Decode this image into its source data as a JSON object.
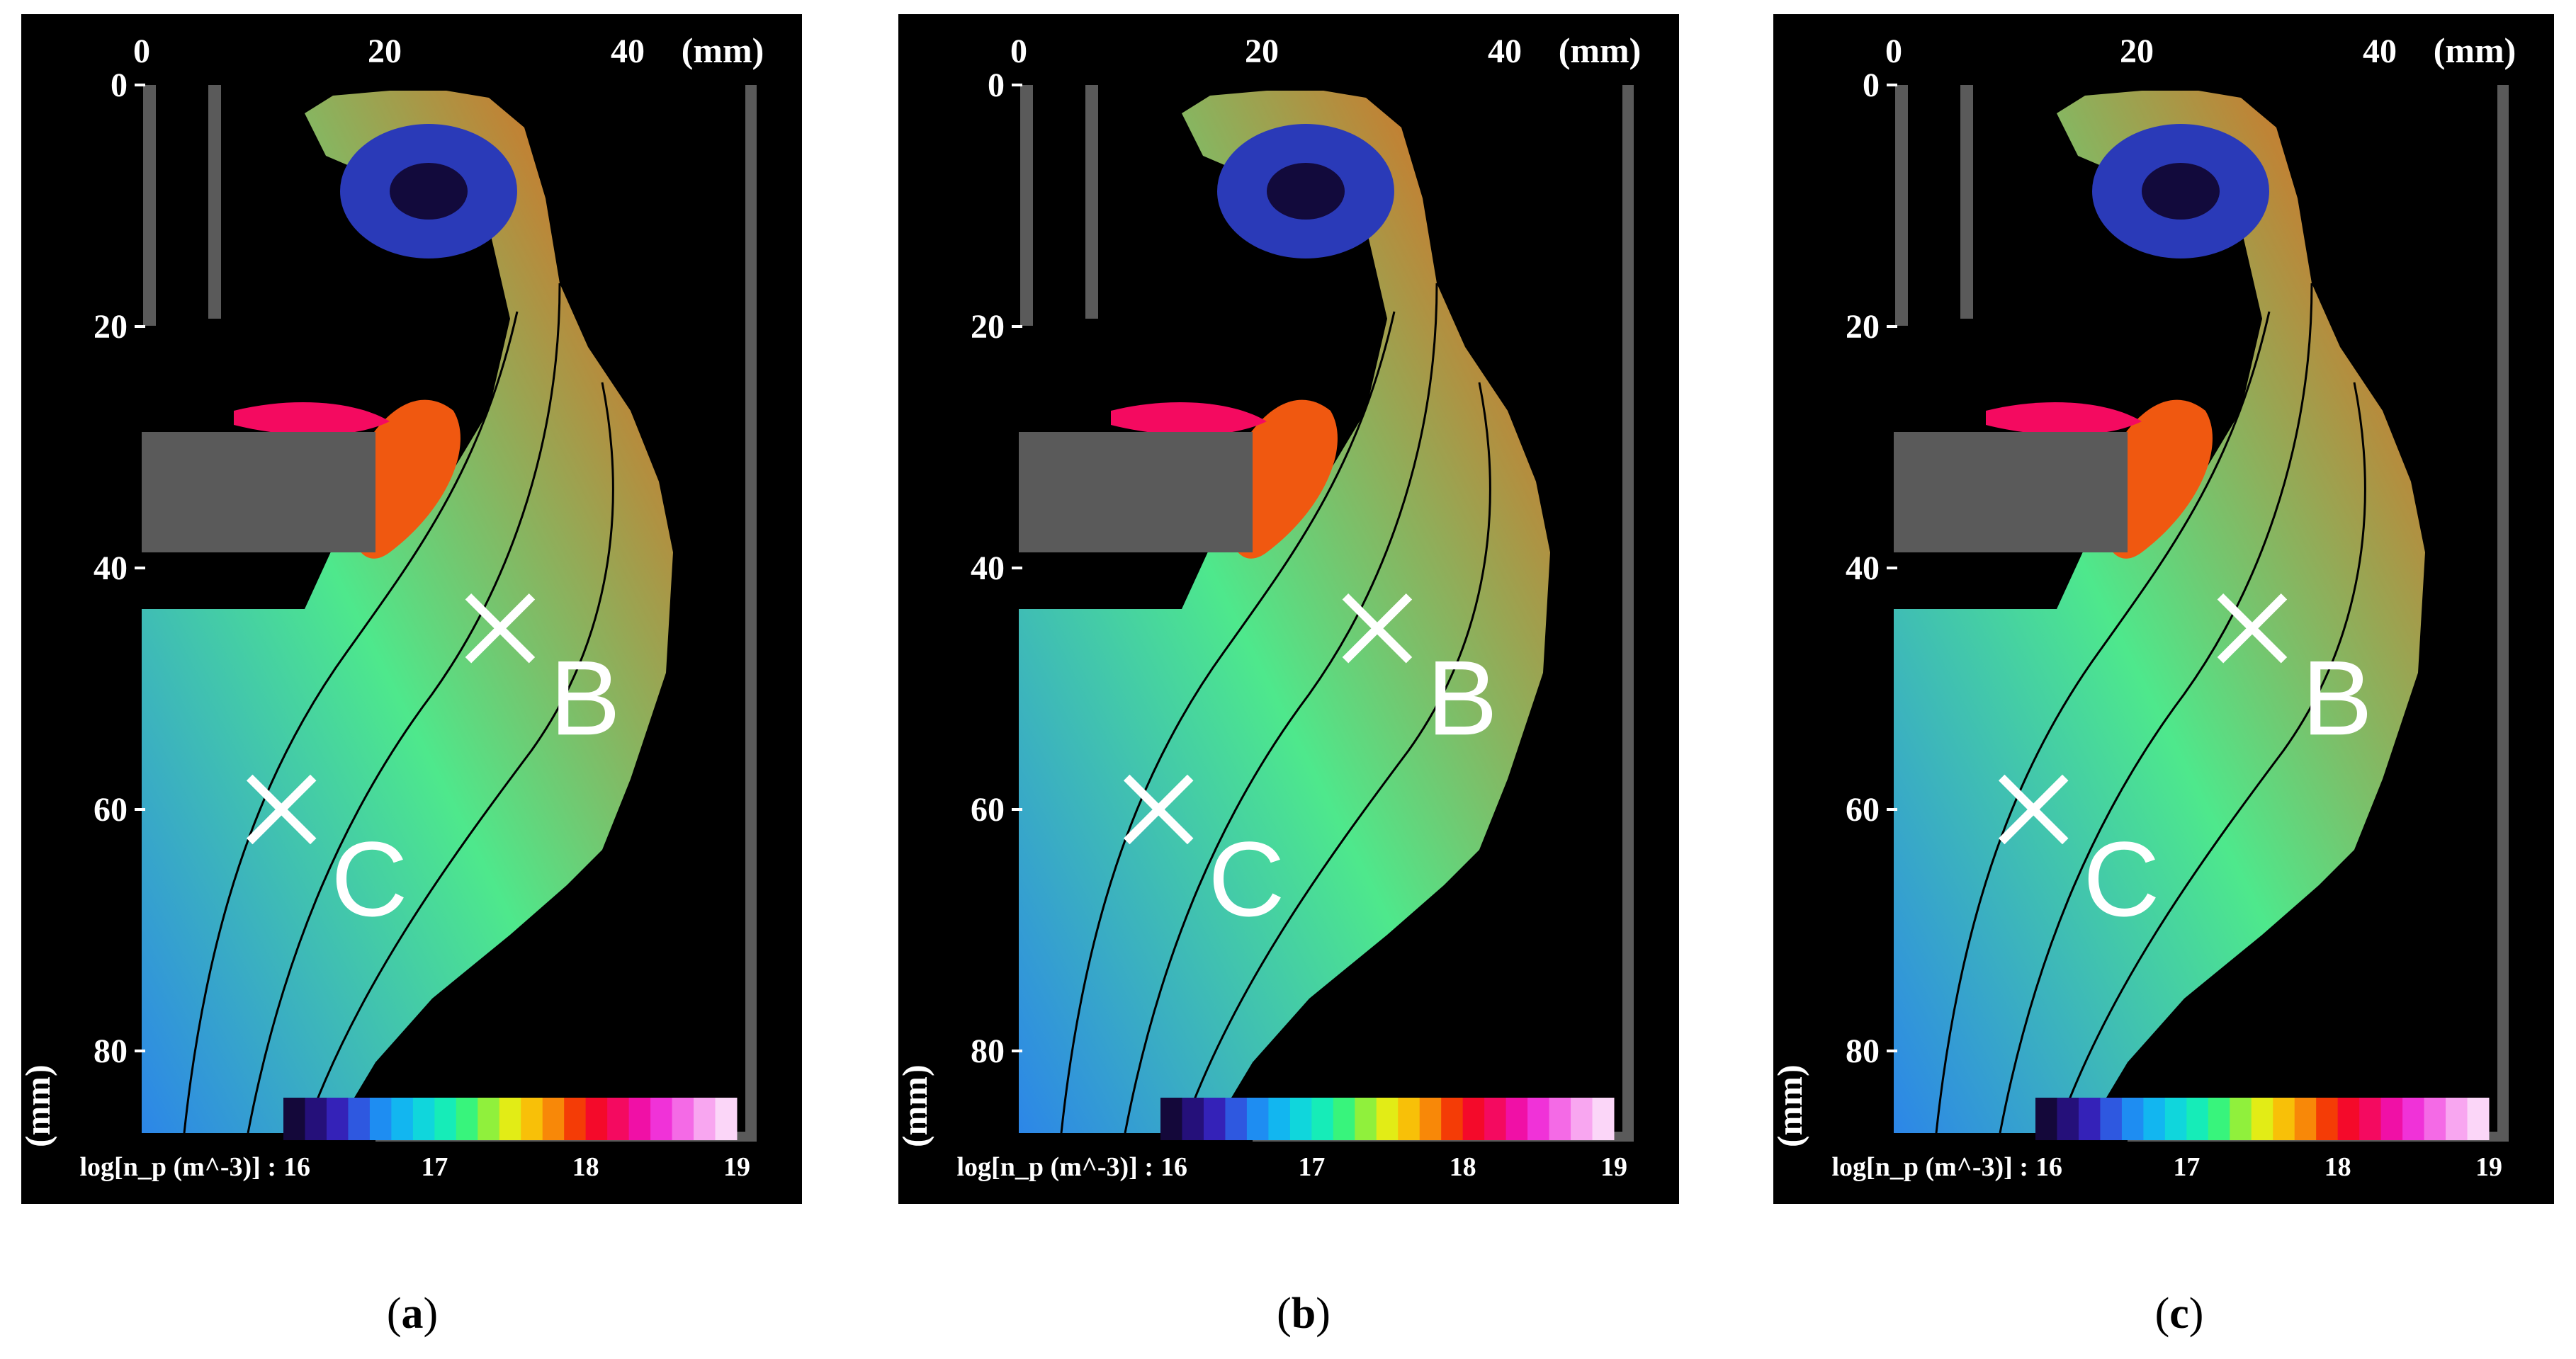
{
  "chart_data": [
    {
      "type": "heatmap",
      "panel_label": "a",
      "x_unit": "(mm)",
      "y_unit": "(mm)",
      "x_ticks": [
        0,
        20,
        40
      ],
      "y_ticks": [
        0,
        20,
        40,
        60,
        80
      ],
      "xlim": [
        0,
        50
      ],
      "ylim": [
        0,
        80
      ],
      "markers": [
        {
          "label": "B",
          "x": 29.5,
          "y": 45
        },
        {
          "label": "C",
          "x": 11.5,
          "y": 60
        }
      ],
      "colorbar": {
        "label": "log[n_p (m^-3)] :",
        "ticks": [
          16,
          17,
          18,
          19
        ],
        "range": [
          16,
          19
        ]
      }
    },
    {
      "type": "heatmap",
      "panel_label": "b",
      "x_unit": "(mm)",
      "y_unit": "(mm)",
      "x_ticks": [
        0,
        20,
        40
      ],
      "y_ticks": [
        0,
        20,
        40,
        60,
        80
      ],
      "xlim": [
        0,
        50
      ],
      "ylim": [
        0,
        80
      ],
      "markers": [
        {
          "label": "B",
          "x": 29.5,
          "y": 45
        },
        {
          "label": "C",
          "x": 11.5,
          "y": 60
        }
      ],
      "colorbar": {
        "label": "log[n_p (m^-3)] :",
        "ticks": [
          16,
          17,
          18,
          19
        ],
        "range": [
          16,
          19
        ]
      }
    },
    {
      "type": "heatmap",
      "panel_label": "c",
      "x_unit": "(mm)",
      "y_unit": "(mm)",
      "x_ticks": [
        0,
        20,
        40
      ],
      "y_ticks": [
        0,
        20,
        40,
        60,
        80
      ],
      "xlim": [
        0,
        50
      ],
      "ylim": [
        0,
        80
      ],
      "markers": [
        {
          "label": "B",
          "x": 29.5,
          "y": 45
        },
        {
          "label": "C",
          "x": 11.5,
          "y": 60
        }
      ],
      "colorbar": {
        "label": "log[n_p (m^-3)] :",
        "ticks": [
          16,
          17,
          18,
          19
        ],
        "range": [
          16,
          19
        ]
      }
    }
  ],
  "colors": {
    "colorbar": [
      "#14083a",
      "#25107a",
      "#3422b8",
      "#2e58e0",
      "#1e8df2",
      "#12b6f0",
      "#10d6dc",
      "#16ecb8",
      "#38f47c",
      "#90f03c",
      "#e2ec16",
      "#f8c008",
      "#f88808",
      "#f43c06",
      "#f40a2a",
      "#f40a60",
      "#f010a6",
      "#f032d8",
      "#f46ae6",
      "#f8a6f0",
      "#fbd6f8"
    ],
    "fill_low": "#2c86e8",
    "fill_mid": "#4ee88c",
    "fill_high": "#f05810",
    "electrode": "#5a5a5a",
    "background": "#000000"
  }
}
